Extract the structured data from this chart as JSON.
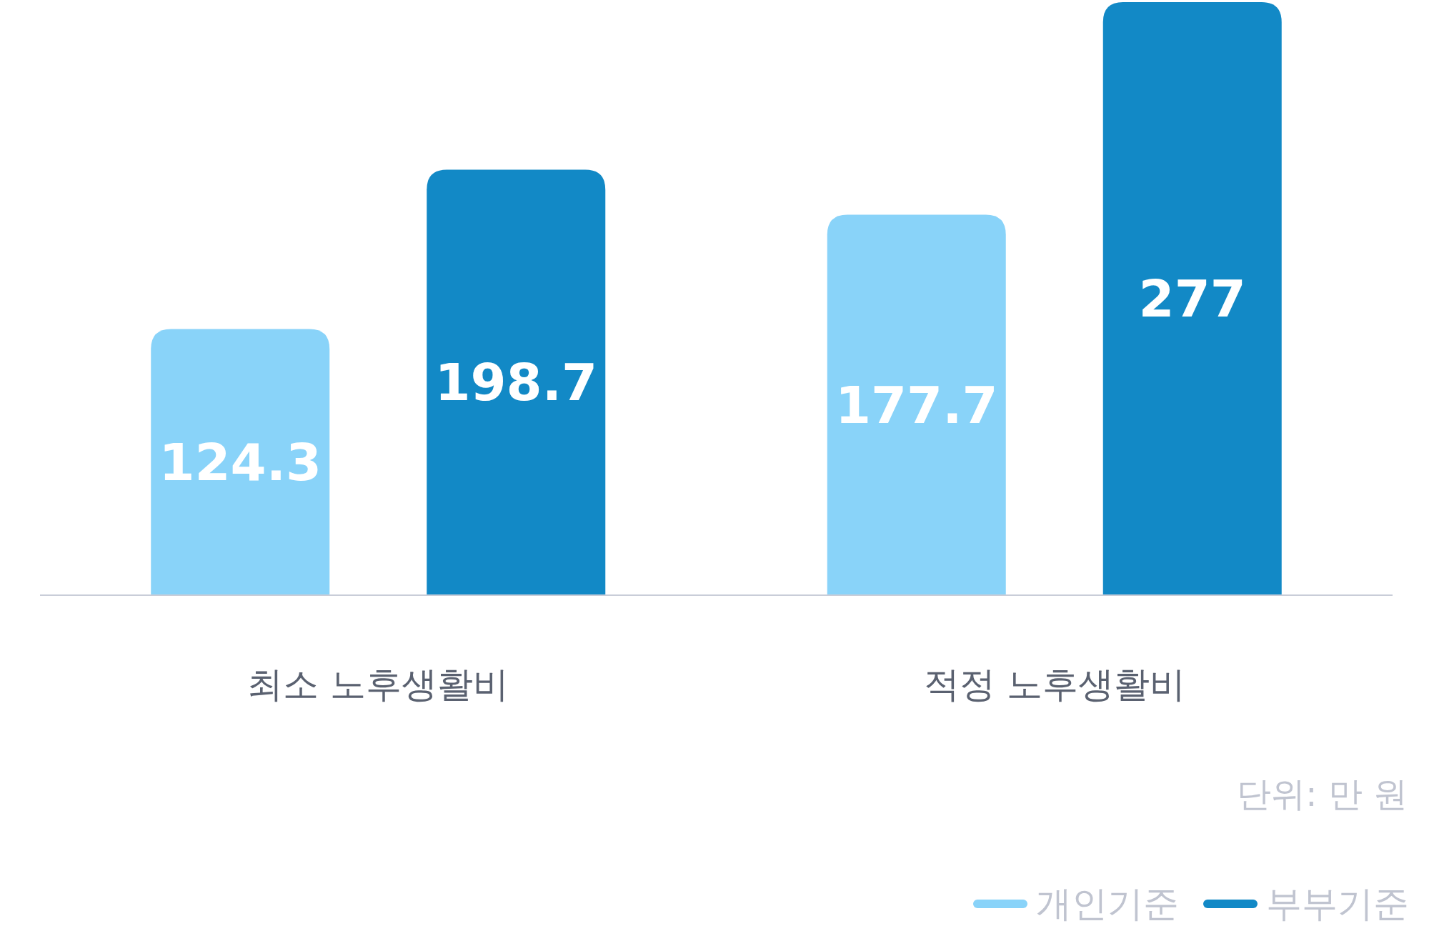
{
  "chart_data": {
    "type": "bar",
    "categories": [
      "최소 노후생활비",
      "적정 노후생활비"
    ],
    "series": [
      {
        "name": "개인기준",
        "color": "#89d3f9",
        "values": [
          124.3,
          177.7
        ]
      },
      {
        "name": "부부기준",
        "color": "#1289c6",
        "values": [
          198.7,
          277
        ]
      }
    ],
    "data_labels": true,
    "legend": "bottom right",
    "tick_labels": "x",
    "annotations": [
      "단위: 만 원"
    ]
  }
}
